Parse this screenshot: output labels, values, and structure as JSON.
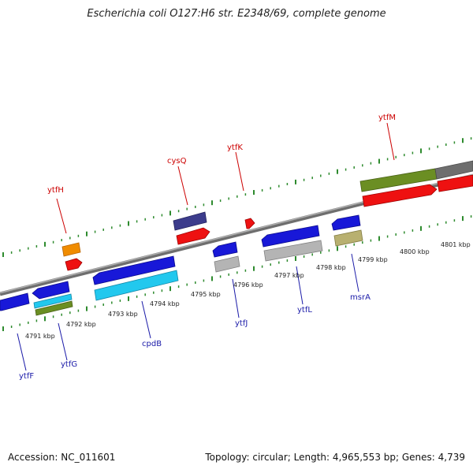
{
  "title": "Escherichia coli O127:H6 str. E2348/69, complete genome",
  "footer": {
    "accession": "Accession: NC_011601",
    "summary": "Topology: circular; Length: 4,965,553 bp; Genes: 4,739"
  },
  "colors": {
    "backbone": "#8a8a8a",
    "tick": "#2e8b2e",
    "forward_label": "#cc0000",
    "reverse_label": "#1a1aa8",
    "gene_blue": "#1818d8",
    "gene_red": "#ee1111",
    "gene_orange": "#f08c00",
    "gene_cyan": "#22c8ee",
    "gene_olive": "#6b8e23",
    "gene_gray": "#b4b4b4",
    "gene_navy": "#3c3c8c",
    "gene_khaki": "#b8b070",
    "gene_darkgray": "#6e6e6e"
  },
  "scale_labels": [
    "4791 kbp",
    "4792 kbp",
    "4793 kbp",
    "4794 kbp",
    "4795 kbp",
    "4796 kbp",
    "4797 kbp",
    "4798 kbp",
    "4799 kbp",
    "4800 kbp",
    "4801 kbp"
  ],
  "forward_genes": [
    "ytfH",
    "cysQ",
    "ytfK",
    "ytfM"
  ],
  "reverse_genes": [
    "ytfF",
    "ytfG",
    "cpdB",
    "ytfJ",
    "ytfL",
    "msrA"
  ]
}
